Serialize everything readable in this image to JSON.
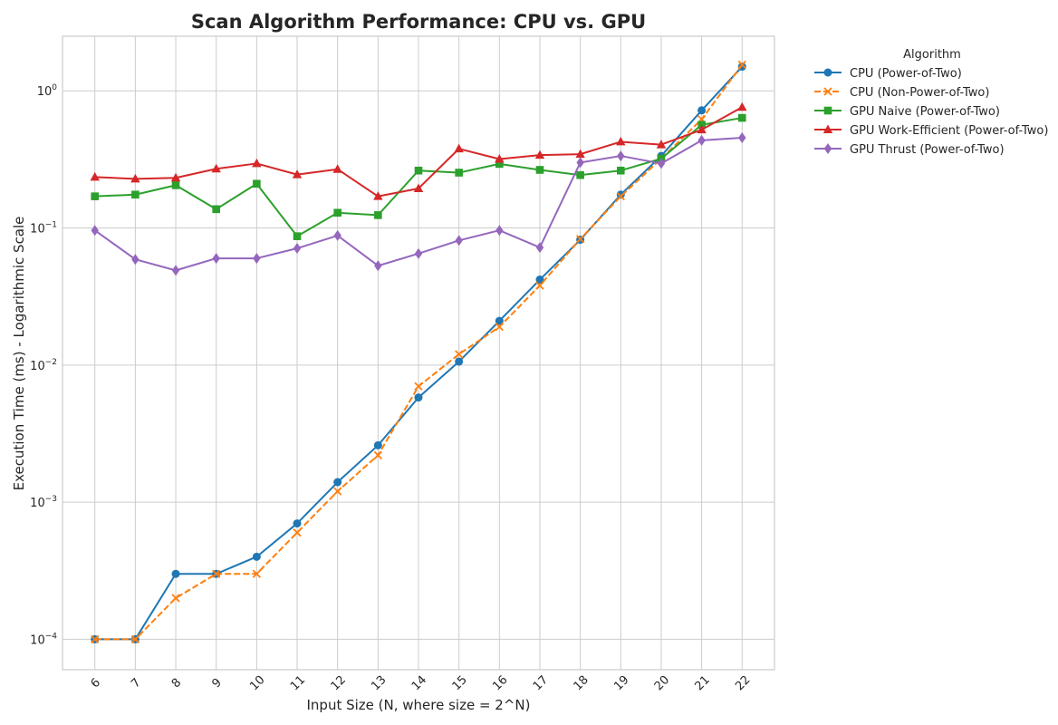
{
  "chart_data": {
    "type": "line",
    "title": "Scan Algorithm Performance: CPU vs. GPU",
    "xlabel": "Input Size (N, where size = 2^N)",
    "ylabel": "Execution Time (ms) - Logarithmic Scale",
    "yscale": "log",
    "ylim": [
      6e-05,
      2.5
    ],
    "xlim": [
      5.2,
      22.8
    ],
    "grid": true,
    "legend": {
      "title": "Algorithm",
      "placement": "outside-top-right"
    },
    "x": [
      6,
      7,
      8,
      9,
      10,
      11,
      12,
      13,
      14,
      15,
      16,
      17,
      18,
      19,
      20,
      21,
      22
    ],
    "y_ticks": [
      {
        "value": 0.0001,
        "base": "10",
        "exp": "−4"
      },
      {
        "value": 0.001,
        "base": "10",
        "exp": "−3"
      },
      {
        "value": 0.01,
        "base": "10",
        "exp": "−2"
      },
      {
        "value": 0.1,
        "base": "10",
        "exp": "−1"
      },
      {
        "value": 1,
        "base": "10",
        "exp": "0"
      }
    ],
    "series": [
      {
        "name": "CPU (Power-of-Two)",
        "color": "#1f77b4",
        "marker": "circle",
        "dash": "solid",
        "values": [
          0.0001,
          0.0001,
          0.0003,
          0.0003,
          0.0004,
          0.0007,
          0.0014,
          0.0026,
          0.0058,
          0.0106,
          0.021,
          0.042,
          0.082,
          0.175,
          0.335,
          0.72,
          1.5
        ]
      },
      {
        "name": "CPU (Non-Power-of-Two)",
        "color": "#ff7f0e",
        "marker": "x",
        "dash": "dashed",
        "values": [
          0.0001,
          0.0001,
          0.0002,
          0.0003,
          0.0003,
          0.0006,
          0.0012,
          0.0022,
          0.007,
          0.012,
          0.019,
          0.038,
          0.083,
          0.17,
          0.32,
          0.62,
          1.55
        ]
      },
      {
        "name": "GPU Naive (Power-of-Two)",
        "color": "#2ca02c",
        "marker": "square",
        "dash": "solid",
        "values": [
          0.17,
          0.175,
          0.205,
          0.137,
          0.21,
          0.087,
          0.129,
          0.124,
          0.262,
          0.253,
          0.293,
          0.265,
          0.243,
          0.262,
          0.32,
          0.565,
          0.635
        ]
      },
      {
        "name": "GPU Work-Efficient (Power-of-Two)",
        "color": "#d62728",
        "marker": "triangle",
        "dash": "solid",
        "values": [
          0.235,
          0.228,
          0.232,
          0.27,
          0.295,
          0.245,
          0.268,
          0.17,
          0.194,
          0.378,
          0.318,
          0.34,
          0.345,
          0.425,
          0.405,
          0.52,
          0.76
        ]
      },
      {
        "name": "GPU Thrust (Power-of-Two)",
        "color": "#9467bd",
        "marker": "diamond",
        "dash": "solid",
        "values": [
          0.096,
          0.059,
          0.049,
          0.06,
          0.06,
          0.071,
          0.088,
          0.053,
          0.065,
          0.081,
          0.096,
          0.072,
          0.3,
          0.335,
          0.295,
          0.435,
          0.455
        ]
      }
    ]
  }
}
